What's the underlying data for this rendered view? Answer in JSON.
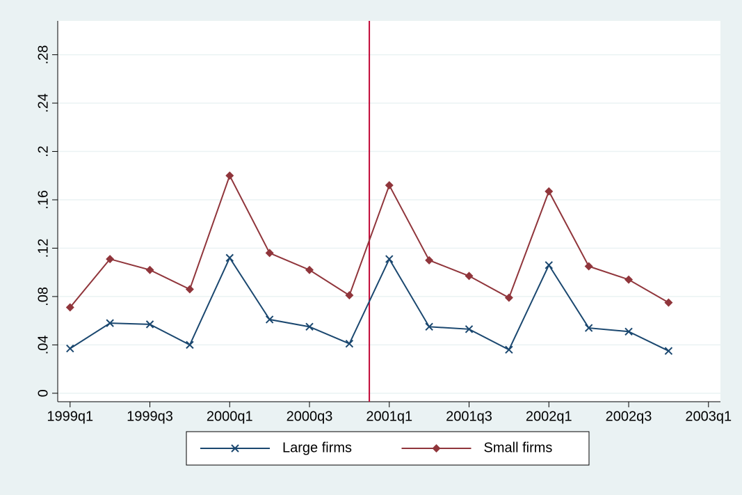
{
  "chart_data": {
    "type": "line",
    "x": [
      156,
      157,
      158,
      159,
      160,
      161,
      162,
      163,
      164,
      165,
      166,
      167,
      168,
      169,
      170,
      171
    ],
    "series": [
      {
        "name": "Large firms",
        "color": "#1a476f",
        "marker": "x",
        "values": [
          0.037,
          0.058,
          0.057,
          0.04,
          0.112,
          0.061,
          0.055,
          0.041,
          0.111,
          0.055,
          0.053,
          0.036,
          0.106,
          0.054,
          0.051,
          0.035
        ]
      },
      {
        "name": "Small firms",
        "color": "#90353b",
        "marker": "diamond",
        "values": [
          0.071,
          0.111,
          0.102,
          0.086,
          0.18,
          0.116,
          0.102,
          0.081,
          0.172,
          0.11,
          0.097,
          0.079,
          0.167,
          0.105,
          0.094,
          0.075
        ]
      }
    ],
    "xline": {
      "value": 163.5,
      "color": "#c10534"
    },
    "xlim": [
      155.69,
      172.3
    ],
    "xticks": [
      {
        "value": 156,
        "label": "1999q1"
      },
      {
        "value": 158,
        "label": "1999q3"
      },
      {
        "value": 160,
        "label": "2000q1"
      },
      {
        "value": 162,
        "label": "2000q3"
      },
      {
        "value": 164,
        "label": "2001q1"
      },
      {
        "value": 166,
        "label": "2001q3"
      },
      {
        "value": 168,
        "label": "2002q1"
      },
      {
        "value": 170,
        "label": "2002q3"
      },
      {
        "value": 172,
        "label": "2003q1"
      }
    ],
    "ylim": [
      -0.007,
      0.308
    ],
    "yticks": [
      0,
      {
        "value": 0.04,
        "label": ".04"
      },
      {
        "value": 0.08,
        "label": ".08"
      },
      {
        "value": 0.12,
        "label": ".12"
      },
      {
        "value": 0.16,
        "label": ".16"
      },
      {
        "value": 0.2,
        "label": ".2"
      },
      {
        "value": 0.24,
        "label": ".24"
      },
      {
        "value": 0.28,
        "label": ".28"
      }
    ],
    "grid": true,
    "legend": "bottom"
  }
}
